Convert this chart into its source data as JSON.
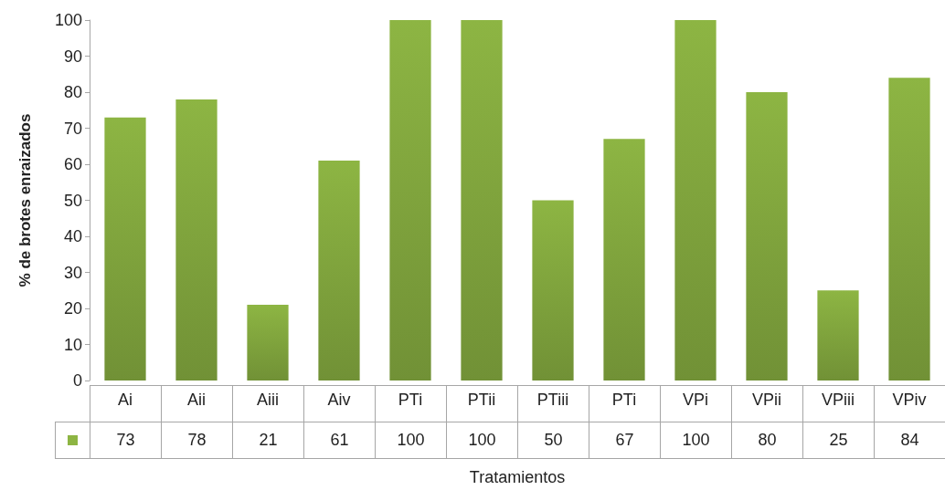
{
  "chart_data": {
    "type": "bar",
    "xlabel": "Tratamientos",
    "ylabel": "% de brotes enraizados",
    "categories": [
      "Ai",
      "Aii",
      "Aiii",
      "Aiv",
      "PTi",
      "PTii",
      "PTiii",
      "PTi",
      "VPi",
      "VPii",
      "VPiii",
      "VPiv"
    ],
    "values": [
      73,
      78,
      21,
      61,
      100,
      100,
      50,
      67,
      100,
      80,
      25,
      84
    ],
    "color": "#8db543",
    "ylim": [
      0,
      100
    ],
    "yticks": [
      0,
      10,
      20,
      30,
      40,
      50,
      60,
      70,
      80,
      90,
      100
    ],
    "data_labels": true,
    "grid": false
  }
}
